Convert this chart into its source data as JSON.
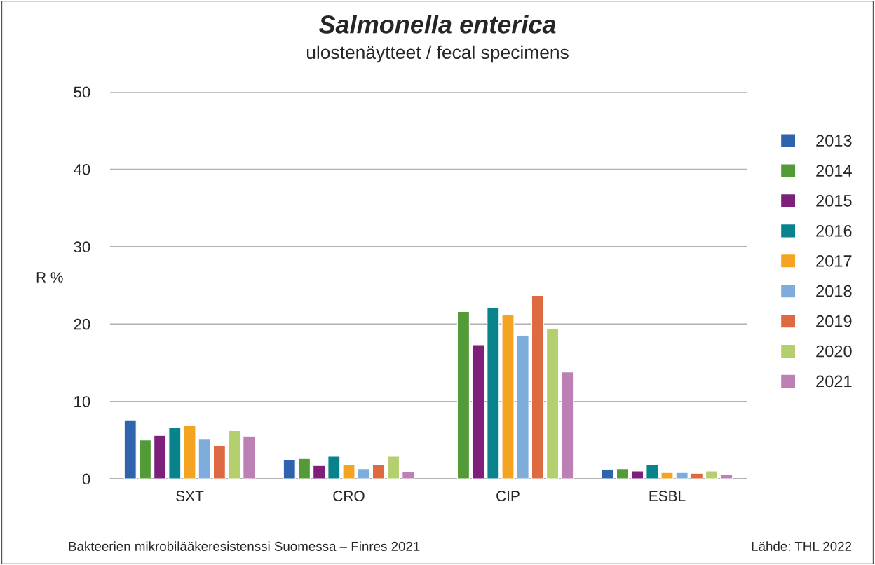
{
  "chart_data": {
    "type": "bar",
    "title": "Salmonella enterica",
    "subtitle": "ulostenäytteet / fecal specimens",
    "ylabel": "R %",
    "categories": [
      "SXT",
      "CRO",
      "CIP",
      "ESBL"
    ],
    "series": [
      {
        "name": "2013",
        "color": "#3063ad",
        "values": [
          7.6,
          2.5,
          null,
          1.2
        ]
      },
      {
        "name": "2014",
        "color": "#529b37",
        "values": [
          5.0,
          2.6,
          21.6,
          1.3
        ]
      },
      {
        "name": "2015",
        "color": "#7f1f7c",
        "values": [
          5.6,
          1.7,
          17.3,
          1.0
        ]
      },
      {
        "name": "2016",
        "color": "#08838c",
        "values": [
          6.6,
          2.9,
          22.1,
          1.8
        ]
      },
      {
        "name": "2017",
        "color": "#f5a422",
        "values": [
          6.9,
          1.8,
          21.2,
          0.8
        ]
      },
      {
        "name": "2018",
        "color": "#7eacdb",
        "values": [
          5.2,
          1.3,
          18.5,
          0.8
        ]
      },
      {
        "name": "2019",
        "color": "#de6a41",
        "values": [
          4.3,
          1.8,
          23.7,
          0.7
        ]
      },
      {
        "name": "2020",
        "color": "#b4d06e",
        "values": [
          6.2,
          2.9,
          19.4,
          1.0
        ]
      },
      {
        "name": "2021",
        "color": "#bd80b5",
        "values": [
          5.5,
          0.9,
          13.8,
          0.5
        ]
      }
    ],
    "ylim": [
      0,
      50
    ],
    "yticks": [
      0,
      10,
      20,
      30,
      40,
      50
    ],
    "grid": "y",
    "legend": "right",
    "annotations": [
      "Bakteerien mikrobilääkeresistenssi Suomessa – Finres 2021",
      "Lähde: THL 2022"
    ]
  }
}
